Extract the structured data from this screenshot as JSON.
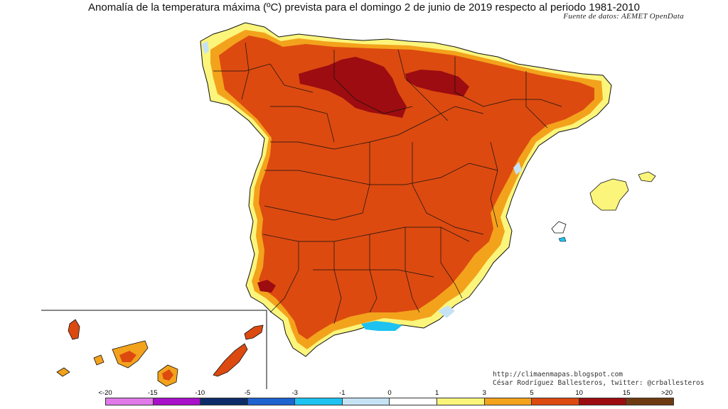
{
  "title": "Anomalía de la temperatura máxima (ºC) prevista para el domingo 2 de junio de 2019 respecto al periodo 1981-2010",
  "source": "Fuente de datos: AEMET OpenData",
  "credits": {
    "url": "http://climaenmapas.blogspot.com",
    "author": "César Rodríguez Ballesteros, twitter: @crballesteros"
  },
  "legend": {
    "ticks": [
      "<-20",
      "-15",
      "-10",
      "-5",
      "-3",
      "-1",
      "0",
      "1",
      "3",
      "5",
      "10",
      "15",
      ">20"
    ],
    "colors": [
      "#e07ae8",
      "#a811c9",
      "#0d2b69",
      "#1e63cf",
      "#1ec2f0",
      "#c6e3f5",
      "#ffffff",
      "#fbf57b",
      "#f3a21c",
      "#dc4a10",
      "#9c0c10",
      "#6e3b10"
    ]
  },
  "colors": {
    "dominant": "#dc4a10",
    "hot_core": "#9c0c10",
    "warm_edge": "#f3a21c",
    "mild": "#fbf57b",
    "cool_coast": "#1ec2f0",
    "border": "#111111"
  }
}
